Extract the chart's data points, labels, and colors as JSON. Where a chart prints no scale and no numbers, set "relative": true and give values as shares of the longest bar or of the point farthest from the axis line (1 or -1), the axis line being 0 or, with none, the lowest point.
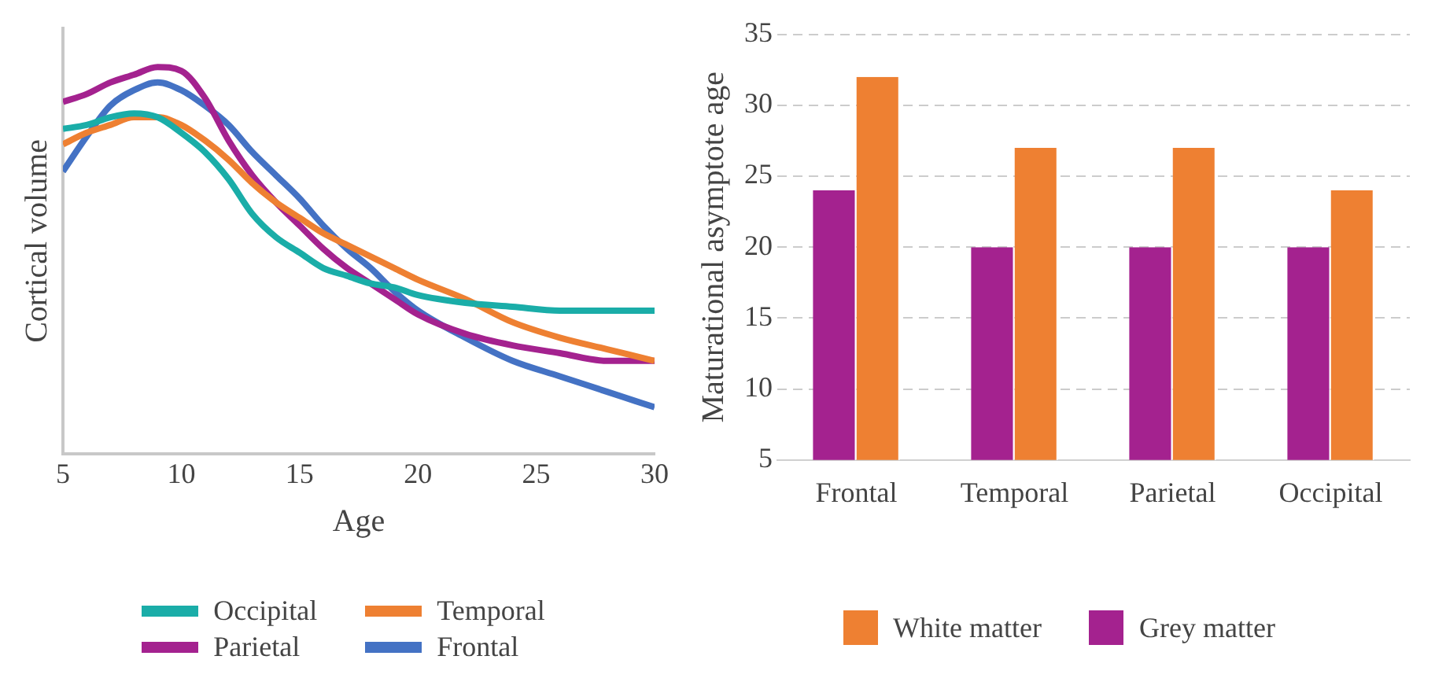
{
  "chart_data": [
    {
      "type": "line",
      "xlabel": "Age",
      "ylabel": "Cortical volume",
      "relative": true,
      "grid": false,
      "legend": "bottom",
      "marker": "none",
      "x": [
        5,
        6,
        7,
        8,
        9,
        10,
        11,
        12,
        13,
        14,
        15,
        16,
        17,
        18,
        19,
        20,
        22,
        24,
        26,
        28,
        30
      ],
      "xlim": [
        5,
        30
      ],
      "xticks": [
        5,
        10,
        15,
        20,
        25,
        30
      ],
      "series": [
        {
          "name": "Occipital",
          "color": "#1aada8",
          "values": [
            0.84,
            0.85,
            0.87,
            0.88,
            0.87,
            0.83,
            0.78,
            0.71,
            0.62,
            0.56,
            0.52,
            0.48,
            0.46,
            0.44,
            0.43,
            0.41,
            0.39,
            0.38,
            0.37,
            0.37,
            0.37
          ]
        },
        {
          "name": "Temporal",
          "color": "#ee8032",
          "values": [
            0.8,
            0.83,
            0.85,
            0.87,
            0.87,
            0.85,
            0.81,
            0.76,
            0.7,
            0.65,
            0.61,
            0.57,
            0.54,
            0.51,
            0.48,
            0.45,
            0.4,
            0.34,
            0.3,
            0.27,
            0.24
          ]
        },
        {
          "name": "Parietal",
          "color": "#a4228f",
          "values": [
            0.91,
            0.93,
            0.96,
            0.98,
            1,
            0.99,
            0.92,
            0.81,
            0.72,
            0.65,
            0.59,
            0.53,
            0.48,
            0.44,
            0.4,
            0.36,
            0.31,
            0.28,
            0.26,
            0.24,
            0.24
          ]
        },
        {
          "name": "Frontal",
          "color": "#4472c4",
          "values": [
            0.73,
            0.82,
            0.9,
            0.94,
            0.96,
            0.94,
            0.9,
            0.85,
            0.78,
            0.72,
            0.66,
            0.59,
            0.53,
            0.48,
            0.42,
            0.37,
            0.3,
            0.24,
            0.2,
            0.16,
            0.12
          ]
        }
      ]
    },
    {
      "type": "bar",
      "ylabel": "Maturational asymptote age",
      "grid": "y",
      "legend": "bottom",
      "categories": [
        "Frontal",
        "Temporal",
        "Parietal",
        "Occipital"
      ],
      "ylim": [
        5,
        35
      ],
      "yticks": [
        5,
        10,
        15,
        20,
        25,
        30,
        35
      ],
      "series": [
        {
          "name": "Grey matter",
          "color": "#a4228f",
          "values": [
            24,
            20,
            20,
            20
          ]
        },
        {
          "name": "White matter",
          "color": "#ee8032",
          "values": [
            32,
            27,
            27,
            24
          ]
        }
      ]
    }
  ]
}
